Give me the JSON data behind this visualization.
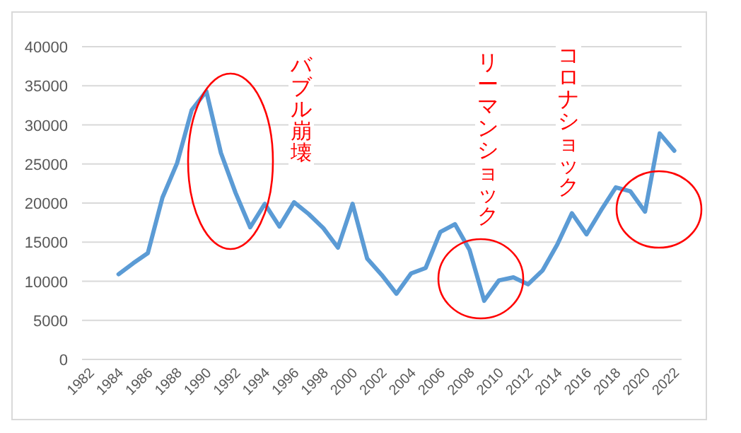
{
  "chart_data": {
    "type": "line",
    "x": [
      1984,
      1985,
      1986,
      1987,
      1988,
      1989,
      1990,
      1991,
      1992,
      1993,
      1994,
      1995,
      1996,
      1997,
      1998,
      1999,
      2000,
      2001,
      2002,
      2003,
      2004,
      2005,
      2006,
      2007,
      2008,
      2009,
      2010,
      2011,
      2012,
      2013,
      2014,
      2015,
      2016,
      2017,
      2018,
      2019,
      2020,
      2021,
      2022
    ],
    "series": [
      {
        "color": "#5b9bd5",
        "values": [
          10900,
          12300,
          13600,
          20700,
          25100,
          31900,
          34300,
          26400,
          21300,
          16900,
          19900,
          17000,
          20100,
          18600,
          16800,
          14300,
          19900,
          12900,
          10800,
          8400,
          11000,
          11700,
          16300,
          17300,
          14000,
          7500,
          10100,
          10500,
          9600,
          11400,
          14700,
          18700,
          16000,
          19100,
          22000,
          21500,
          18900,
          28900,
          26700
        ]
      }
    ],
    "xlim": [
      1981.5,
      2022.5
    ],
    "xticks": [
      1982,
      1984,
      1986,
      1988,
      1990,
      1992,
      1994,
      1996,
      1998,
      2000,
      2002,
      2004,
      2006,
      2008,
      2010,
      2012,
      2014,
      2016,
      2018,
      2020,
      2022
    ],
    "ylim": [
      0,
      40000
    ],
    "yticks": [
      0,
      5000,
      10000,
      15000,
      20000,
      25000,
      30000,
      35000,
      40000
    ],
    "grid": "y",
    "marker": "none",
    "line_style": "solid",
    "annotations": [
      "バブル崩壊",
      "リーマンショック",
      "コロナショック"
    ]
  }
}
